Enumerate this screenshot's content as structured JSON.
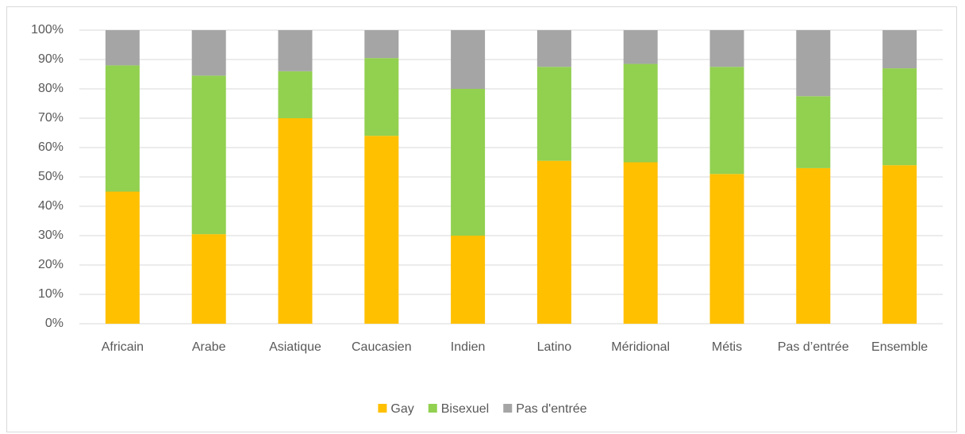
{
  "chart_data": {
    "type": "stacked_bar",
    "categories": [
      "Africain",
      "Arabe",
      "Asiatique",
      "Caucasien",
      "Indien",
      "Latino",
      "Méridional",
      "Métis",
      "Pas d’entrée",
      "Ensemble"
    ],
    "series": [
      {
        "name": "Gay",
        "color": "#ffc000",
        "values": [
          45,
          30.5,
          70,
          64,
          30,
          55.5,
          55,
          51,
          53,
          54
        ]
      },
      {
        "name": "Bisexuel",
        "color": "#92d050",
        "values": [
          43,
          54,
          16,
          26.5,
          50,
          32,
          33.5,
          36.5,
          24.5,
          33
        ]
      },
      {
        "name": "Pas d'entrée",
        "color": "#a5a5a5",
        "values": [
          12,
          15.5,
          14,
          9.5,
          20,
          12.5,
          11.5,
          12.5,
          22.5,
          13
        ]
      }
    ],
    "ylim": [
      0,
      100
    ],
    "yticks": [
      {
        "value": 0,
        "label": "0%"
      },
      {
        "value": 10,
        "label": "10%"
      },
      {
        "value": 20,
        "label": "20%"
      },
      {
        "value": 30,
        "label": "30%"
      },
      {
        "value": 40,
        "label": "40%"
      },
      {
        "value": 50,
        "label": "50%"
      },
      {
        "value": 60,
        "label": "60%"
      },
      {
        "value": 70,
        "label": "70%"
      },
      {
        "value": 80,
        "label": "80%"
      },
      {
        "value": 90,
        "label": "90%"
      },
      {
        "value": 100,
        "label": "100%"
      }
    ],
    "grid": true,
    "legend": "bottom"
  }
}
